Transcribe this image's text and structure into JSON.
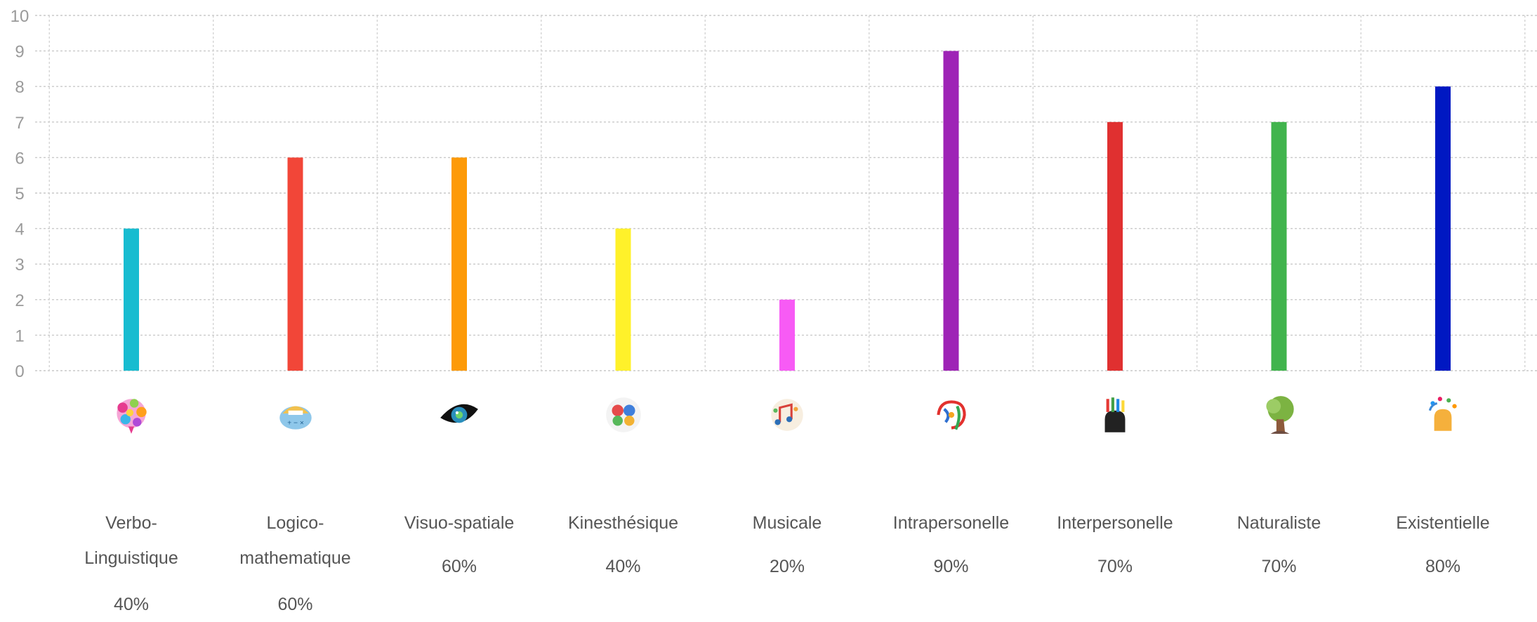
{
  "chart_data": {
    "type": "bar",
    "categories": [
      "Verbo-Linguistique",
      "Logico-mathematique",
      "Visuo-spatiale",
      "Kinesthésique",
      "Musicale",
      "Intrapersonelle",
      "Interpersonelle",
      "Naturaliste",
      "Existentielle"
    ],
    "values": [
      4,
      6,
      6,
      4,
      2,
      9,
      7,
      7,
      8
    ],
    "colors": [
      "#17bcd0",
      "#f24638",
      "#fd9a08",
      "#fff12a",
      "#f75bf5",
      "#9e24b6",
      "#e03030",
      "#41b44d",
      "#0018c2"
    ],
    "ylim": [
      0,
      10
    ],
    "yticks": [
      "0",
      "1",
      "2",
      "3",
      "4",
      "5",
      "6",
      "7",
      "8",
      "9",
      "10"
    ],
    "grid": true,
    "legend": "none"
  },
  "categories": [
    {
      "label_lines": [
        "Verbo-",
        "Linguistique"
      ],
      "percent": "40%",
      "icon": "speech-bubbles-brain-icon"
    },
    {
      "label_lines": [
        "Logico-",
        "mathematique"
      ],
      "percent": "60%",
      "icon": "math-brain-icon"
    },
    {
      "label_lines": [
        "Visuo-spatiale"
      ],
      "percent": "60%",
      "icon": "eye-icon"
    },
    {
      "label_lines": [
        "Kinesthésique"
      ],
      "percent": "40%",
      "icon": "moving-body-brain-icon"
    },
    {
      "label_lines": [
        "Musicale"
      ],
      "percent": "20%",
      "icon": "music-notes-icon"
    },
    {
      "label_lines": [
        "Intrapersonelle"
      ],
      "percent": "90%",
      "icon": "self-reflection-icon"
    },
    {
      "label_lines": [
        "Interpersonelle"
      ],
      "percent": "70%",
      "icon": "head-with-pencils-icon"
    },
    {
      "label_lines": [
        "Naturaliste"
      ],
      "percent": "70%",
      "icon": "tree-head-icon"
    },
    {
      "label_lines": [
        "Existentielle"
      ],
      "percent": "80%",
      "icon": "thinking-head-icon"
    }
  ]
}
